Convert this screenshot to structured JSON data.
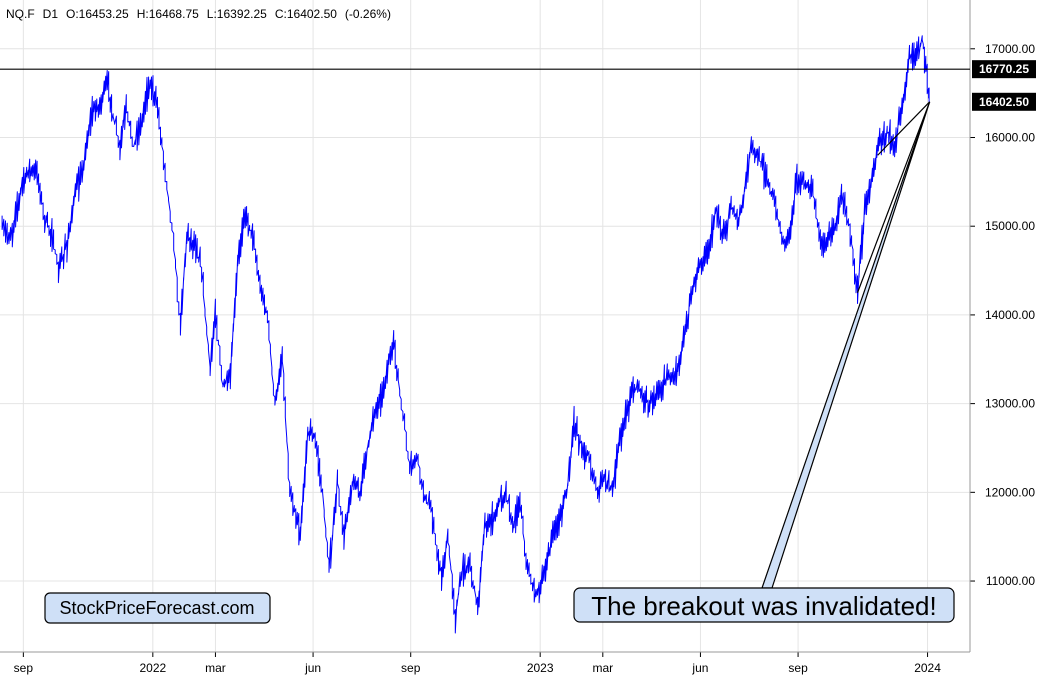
{
  "header": {
    "symbol": "NQ.F",
    "timeframe": "D1",
    "open": "O:16453.25",
    "high": "H:16468.75",
    "low": "L:16392.25",
    "close": "C:16402.50",
    "change": "(-0.26%)"
  },
  "watermark": "StockPriceForecast.com",
  "annotation": "The breakout was invalidated!",
  "colors": {
    "series": "#0000ff",
    "line": "#000000",
    "tag_bg": "#000000",
    "callout_bg": "#cfe0f7",
    "grid": "#e4e4e4"
  },
  "chart_data": {
    "type": "line",
    "ylim": [
      10200,
      17550
    ],
    "yticks": [
      11000,
      12000,
      13000,
      14000,
      15000,
      16000,
      17000
    ],
    "ytick_labels": [
      "11000.00",
      "12000.00",
      "13000.00",
      "14000.00",
      "15000.00",
      "16000.00",
      "17000.00"
    ],
    "xticks": [
      {
        "label": "sep",
        "date": "2021-09-01"
      },
      {
        "label": "2022",
        "date": "2022-01-01"
      },
      {
        "label": "mar",
        "date": "2022-03-01"
      },
      {
        "label": "jun",
        "date": "2022-06-01"
      },
      {
        "label": "sep",
        "date": "2022-09-01"
      },
      {
        "label": "2023",
        "date": "2023-01-01"
      },
      {
        "label": "mar",
        "date": "2023-03-01"
      },
      {
        "label": "jun",
        "date": "2023-06-01"
      },
      {
        "label": "sep",
        "date": "2023-09-01"
      },
      {
        "label": "2024",
        "date": "2024-01-01"
      }
    ],
    "xlim": [
      "2021-08-10",
      "2024-02-10"
    ],
    "horizontal_line": {
      "value": 16770.25,
      "label": "16770.25"
    },
    "last_price": {
      "value": 16402.5,
      "label": "16402.50"
    },
    "trendlines": [
      {
        "from": {
          "date": "2023-10-27",
          "value": 14250
        },
        "to": {
          "date": "2024-01-03",
          "value": 16402.5
        }
      },
      {
        "from": {
          "date": "2023-11-15",
          "value": 15800
        },
        "to": {
          "date": "2024-01-03",
          "value": 16402.5
        }
      }
    ],
    "series": [
      {
        "color": "#0000ff",
        "points": [
          [
            "2021-08-12",
            15000
          ],
          [
            "2021-08-20",
            14850
          ],
          [
            "2021-08-31",
            15500
          ],
          [
            "2021-09-07",
            15650
          ],
          [
            "2021-09-14",
            15600
          ],
          [
            "2021-09-21",
            15100
          ],
          [
            "2021-09-28",
            14900
          ],
          [
            "2021-10-04",
            14500
          ],
          [
            "2021-10-12",
            14800
          ],
          [
            "2021-10-20",
            15350
          ],
          [
            "2021-10-28",
            15700
          ],
          [
            "2021-11-05",
            16300
          ],
          [
            "2021-11-12",
            16350
          ],
          [
            "2021-11-19",
            16650
          ],
          [
            "2021-11-26",
            16150
          ],
          [
            "2021-12-01",
            15900
          ],
          [
            "2021-12-07",
            16350
          ],
          [
            "2021-12-14",
            15900
          ],
          [
            "2021-12-22",
            16200
          ],
          [
            "2021-12-28",
            16600
          ],
          [
            "2022-01-04",
            16450
          ],
          [
            "2022-01-11",
            15800
          ],
          [
            "2022-01-19",
            15000
          ],
          [
            "2022-01-24",
            14300
          ],
          [
            "2022-01-27",
            13900
          ],
          [
            "2022-02-02",
            14900
          ],
          [
            "2022-02-09",
            14800
          ],
          [
            "2022-02-16",
            14500
          ],
          [
            "2022-02-24",
            13400
          ],
          [
            "2022-03-01",
            14000
          ],
          [
            "2022-03-08",
            13200
          ],
          [
            "2022-03-15",
            13300
          ],
          [
            "2022-03-22",
            14600
          ],
          [
            "2022-03-29",
            15150
          ],
          [
            "2022-04-05",
            14900
          ],
          [
            "2022-04-12",
            14300
          ],
          [
            "2022-04-19",
            14000
          ],
          [
            "2022-04-26",
            13000
          ],
          [
            "2022-05-03",
            13500
          ],
          [
            "2022-05-10",
            12000
          ],
          [
            "2022-05-20",
            11500
          ],
          [
            "2022-05-27",
            12700
          ],
          [
            "2022-06-03",
            12600
          ],
          [
            "2022-06-10",
            12000
          ],
          [
            "2022-06-16",
            11100
          ],
          [
            "2022-06-24",
            12100
          ],
          [
            "2022-06-30",
            11500
          ],
          [
            "2022-07-08",
            12100
          ],
          [
            "2022-07-15",
            12000
          ],
          [
            "2022-07-22",
            12500
          ],
          [
            "2022-07-29",
            12900
          ],
          [
            "2022-08-05",
            13100
          ],
          [
            "2022-08-16",
            13700
          ],
          [
            "2022-08-23",
            13000
          ],
          [
            "2022-08-31",
            12300
          ],
          [
            "2022-09-08",
            12400
          ],
          [
            "2022-09-13",
            12000
          ],
          [
            "2022-09-20",
            11800
          ],
          [
            "2022-09-30",
            11000
          ],
          [
            "2022-10-06",
            11500
          ],
          [
            "2022-10-13",
            10600
          ],
          [
            "2022-10-19",
            11100
          ],
          [
            "2022-10-27",
            11200
          ],
          [
            "2022-11-03",
            10700
          ],
          [
            "2022-11-10",
            11600
          ],
          [
            "2022-11-17",
            11700
          ],
          [
            "2022-11-24",
            11900
          ],
          [
            "2022-11-30",
            12000
          ],
          [
            "2022-12-06",
            11600
          ],
          [
            "2022-12-13",
            11900
          ],
          [
            "2022-12-20",
            11100
          ],
          [
            "2022-12-28",
            10850
          ],
          [
            "2023-01-06",
            11100
          ],
          [
            "2023-01-13",
            11550
          ],
          [
            "2023-01-20",
            11700
          ],
          [
            "2023-01-27",
            12100
          ],
          [
            "2023-02-02",
            12800
          ],
          [
            "2023-02-09",
            12500
          ],
          [
            "2023-02-16",
            12400
          ],
          [
            "2023-02-24",
            12000
          ],
          [
            "2023-03-02",
            12200
          ],
          [
            "2023-03-10",
            12000
          ],
          [
            "2023-03-17",
            12600
          ],
          [
            "2023-03-24",
            12900
          ],
          [
            "2023-03-31",
            13200
          ],
          [
            "2023-04-07",
            13100
          ],
          [
            "2023-04-14",
            13000
          ],
          [
            "2023-04-21",
            13100
          ],
          [
            "2023-04-28",
            13250
          ],
          [
            "2023-05-05",
            13300
          ],
          [
            "2023-05-12",
            13450
          ],
          [
            "2023-05-19",
            13900
          ],
          [
            "2023-05-26",
            14400
          ],
          [
            "2023-06-02",
            14600
          ],
          [
            "2023-06-09",
            14750
          ],
          [
            "2023-06-15",
            15150
          ],
          [
            "2023-06-23",
            14900
          ],
          [
            "2023-06-30",
            15200
          ],
          [
            "2023-07-07",
            15050
          ],
          [
            "2023-07-14",
            15500
          ],
          [
            "2023-07-19",
            15950
          ],
          [
            "2023-07-28",
            15700
          ],
          [
            "2023-08-04",
            15500
          ],
          [
            "2023-08-11",
            15200
          ],
          [
            "2023-08-18",
            14800
          ],
          [
            "2023-08-25",
            15000
          ],
          [
            "2023-08-31",
            15550
          ],
          [
            "2023-09-08",
            15450
          ],
          [
            "2023-09-15",
            15400
          ],
          [
            "2023-09-22",
            14800
          ],
          [
            "2023-09-29",
            14850
          ],
          [
            "2023-10-06",
            15000
          ],
          [
            "2023-10-12",
            15350
          ],
          [
            "2023-10-20",
            14950
          ],
          [
            "2023-10-27",
            14250
          ],
          [
            "2023-11-03",
            15200
          ],
          [
            "2023-11-10",
            15600
          ],
          [
            "2023-11-17",
            16000
          ],
          [
            "2023-11-24",
            16050
          ],
          [
            "2023-12-01",
            15950
          ],
          [
            "2023-12-08",
            16300
          ],
          [
            "2023-12-15",
            16900
          ],
          [
            "2023-12-22",
            16950
          ],
          [
            "2023-12-27",
            17100
          ],
          [
            "2023-12-29",
            16900
          ],
          [
            "2024-01-02",
            16550
          ],
          [
            "2024-01-03",
            16402.5
          ]
        ]
      }
    ]
  }
}
